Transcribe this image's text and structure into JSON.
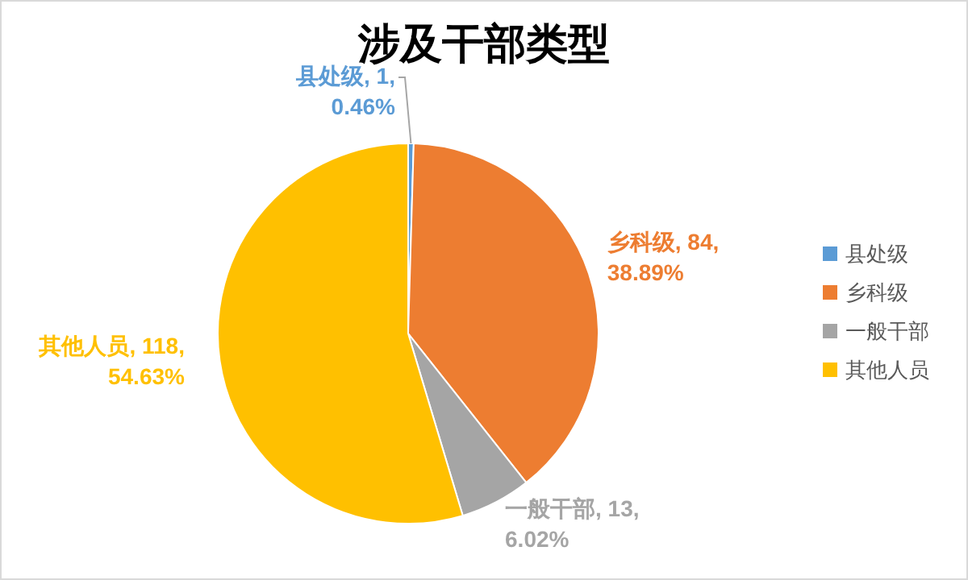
{
  "chart_data": {
    "type": "pie",
    "title": "涉及干部类型",
    "categories": [
      "县处级",
      "乡科级",
      "一般干部",
      "其他人员"
    ],
    "values": [
      1,
      84,
      13,
      118
    ],
    "colors": [
      "#5b9bd5",
      "#ed7d31",
      "#a5a5a5",
      "#ffc000"
    ],
    "value_labels": [
      "县处级, 1, 0.46%",
      "乡科级, 84, 38.89%",
      "一般干部, 13, 6.02%",
      "其他人员, 118, 54.63%"
    ],
    "legend": "right"
  }
}
